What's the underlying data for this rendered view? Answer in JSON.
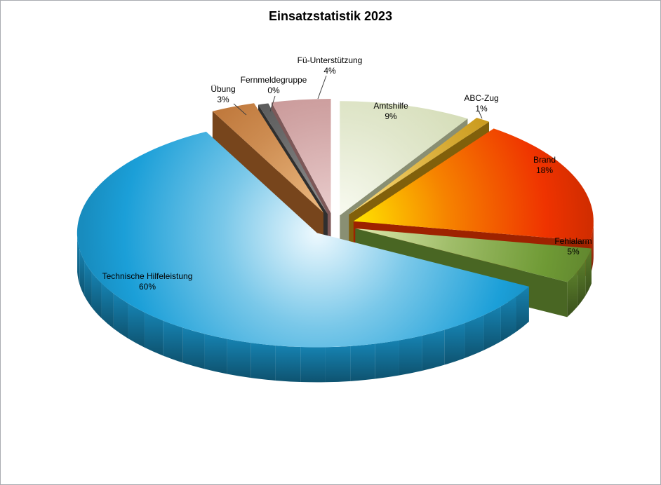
{
  "chart_data": {
    "type": "pie",
    "style": "3d-exploded",
    "title": "Einsatzstatistik 2023",
    "legend": "none",
    "unit": "%",
    "slices": [
      {
        "label": "Amtshilfe",
        "slug": "amtshilfe",
        "value": 9,
        "pct": "9%",
        "color": "#cfd8ae",
        "highlight": "#f8faf0"
      },
      {
        "label": "ABC-Zug",
        "slug": "abc-zug",
        "value": 1,
        "pct": "1%",
        "color": "#c39110",
        "highlight": "#ffdf7e"
      },
      {
        "label": "Brand",
        "slug": "brand",
        "value": 18,
        "pct": "18%",
        "color": "#ef3300",
        "highlight": "#ffe400"
      },
      {
        "label": "Fehlalarm",
        "slug": "fehlalarm",
        "value": 5,
        "pct": "5%",
        "color": "#6f9a35",
        "highlight": "#dfe9ad"
      },
      {
        "label": "Technische Hilfeleistung",
        "slug": "technische-hilfeleistung",
        "value": 60,
        "pct": "60%",
        "color": "#1b9fd8",
        "highlight": "#eef9fe"
      },
      {
        "label": "Übung",
        "slug": "uebung",
        "value": 3,
        "pct": "3%",
        "color": "#b4682a",
        "highlight": "#ecb980"
      },
      {
        "label": "Fernmeldegruppe",
        "slug": "fernmeldegruppe",
        "value": 0,
        "pct": "0%",
        "color": "#474747",
        "highlight": "#909090"
      },
      {
        "label": "Fü-Unterstützung",
        "slug": "fue-unterstuetzung",
        "value": 4,
        "pct": "4%",
        "color": "#bd8585",
        "highlight": "#e9cccc"
      }
    ]
  }
}
